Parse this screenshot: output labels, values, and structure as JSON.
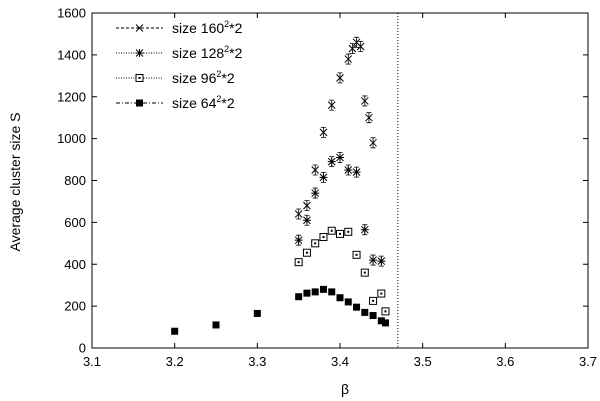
{
  "chart_data": {
    "type": "scatter",
    "xlabel": "β",
    "ylabel": "Average cluster size S",
    "xlim": [
      3.1,
      3.7
    ],
    "ylim": [
      0,
      1600
    ],
    "xticks": [
      "3.1",
      "3.2",
      "3.3",
      "3.4",
      "3.5",
      "3.6",
      "3.7"
    ],
    "yticks": [
      "0",
      "200",
      "400",
      "600",
      "800",
      "1000",
      "1200",
      "1400",
      "1600"
    ],
    "grid": false,
    "legend_position": "top-left",
    "vertical_line_x": 3.47,
    "series": [
      {
        "name": "size 160²*2",
        "label_prefix": "size 160",
        "label_sup": "2",
        "label_suffix": "*2",
        "marker": "x",
        "line": "dashed",
        "x": [
          3.35,
          3.36,
          3.37,
          3.38,
          3.39,
          3.4,
          3.41,
          3.415,
          3.42,
          3.425,
          3.43,
          3.435,
          3.44
        ],
        "y": [
          640,
          680,
          850,
          1030,
          1160,
          1290,
          1380,
          1430,
          1460,
          1440,
          1180,
          1100,
          980
        ]
      },
      {
        "name": "size 128²*2",
        "label_prefix": "size 128",
        "label_sup": "2",
        "label_suffix": "*2",
        "marker": "star",
        "line": "dotted",
        "x": [
          3.35,
          3.36,
          3.37,
          3.38,
          3.39,
          3.4,
          3.41,
          3.42,
          3.43,
          3.44,
          3.45
        ],
        "y": [
          515,
          610,
          740,
          815,
          890,
          910,
          850,
          840,
          565,
          420,
          415
        ]
      },
      {
        "name": "size 96²*2",
        "label_prefix": "size  96",
        "label_sup": "2",
        "label_suffix": "*2",
        "marker": "square-dot",
        "line": "dotted",
        "x": [
          3.35,
          3.36,
          3.37,
          3.38,
          3.39,
          3.4,
          3.41,
          3.42,
          3.43,
          3.44,
          3.45,
          3.455
        ],
        "y": [
          410,
          455,
          500,
          530,
          560,
          545,
          555,
          445,
          360,
          225,
          260,
          175
        ]
      },
      {
        "name": "size 64²*2",
        "label_prefix": "size  64",
        "label_sup": "2",
        "label_suffix": "*2",
        "marker": "filled-square",
        "line": "dashdot",
        "x": [
          3.2,
          3.25,
          3.3,
          3.35,
          3.36,
          3.37,
          3.38,
          3.39,
          3.4,
          3.41,
          3.42,
          3.43,
          3.44,
          3.45,
          3.455
        ],
        "y": [
          80,
          110,
          165,
          245,
          262,
          268,
          280,
          268,
          240,
          220,
          195,
          170,
          155,
          130,
          120
        ]
      }
    ]
  }
}
